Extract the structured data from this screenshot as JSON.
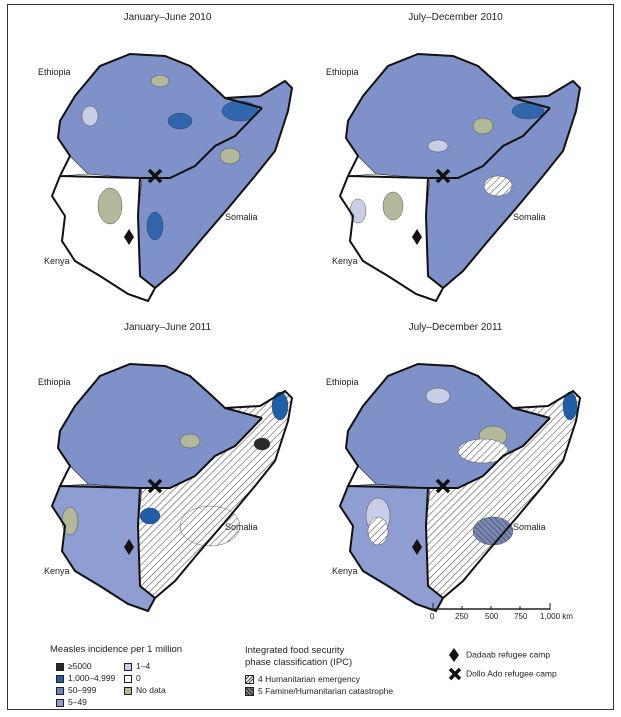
{
  "panels": [
    {
      "title": "January–June 2010"
    },
    {
      "title": "July–December 2010"
    },
    {
      "title": "January–June 2011"
    },
    {
      "title": "July–December 2011"
    }
  ],
  "country_labels": {
    "ethiopia": "Ethiopia",
    "somalia": "Somalia",
    "kenya": "Kenya"
  },
  "scale_bar": {
    "ticks": [
      "0",
      "250",
      "500",
      "750",
      "1,000 km"
    ]
  },
  "legend": {
    "incidence_title": "Measles incidence per 1 million",
    "incidence_items": [
      {
        "label": "≥5000",
        "color": "#2b2b2b"
      },
      {
        "label": "1,000–4,999",
        "color": "#1f5fa8"
      },
      {
        "label": "50–999",
        "color": "#6b80bd"
      },
      {
        "label": "5–49",
        "color": "#8e9dd2"
      },
      {
        "label": "1–4",
        "color": "#c9cde6"
      },
      {
        "label": "0",
        "color": "#ffffff"
      },
      {
        "label": "No data",
        "color": "#b3b89a"
      }
    ],
    "ipc_title_line1": "Integrated food security",
    "ipc_title_line2": "phase classification (IPC)",
    "ipc_items": [
      {
        "label": "4 Humanitarian emergency"
      },
      {
        "label": "5 Famine/Humanitarian catastrophe"
      }
    ],
    "camps": [
      {
        "label": "Dadaab refugee camp",
        "icon": "diamond-icon"
      },
      {
        "label": "Dollo Ado refugee camp",
        "icon": "x-icon"
      }
    ]
  }
}
